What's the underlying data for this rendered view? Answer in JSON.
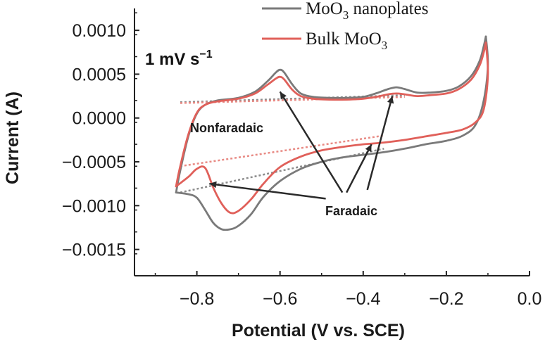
{
  "chart_data": {
    "type": "line",
    "title": "",
    "xlabel": "Potential (V vs. SCE)",
    "ylabel": "Current (A)",
    "xlim": [
      -0.95,
      0.0
    ],
    "ylim": [
      -0.0018,
      0.00125
    ],
    "x_ticks": [
      -0.8,
      -0.6,
      -0.4,
      -0.2,
      0.0
    ],
    "x_tick_labels": [
      "−0.8",
      "−0.6",
      "−0.4",
      "−0.2",
      "0.0"
    ],
    "y_ticks": [
      0.001,
      0.0005,
      0.0,
      -0.0005,
      -0.001,
      -0.0015
    ],
    "y_tick_labels": [
      "0.0010",
      "0.0005",
      "0.0000",
      "−0.0005",
      "−0.0010",
      "−0.0015"
    ],
    "grid": false,
    "legend_position": "top",
    "scan_rate": {
      "prefix": "1 mV s",
      "exponent": "−1"
    },
    "series": [
      {
        "name": "MoO3 nanoplates",
        "name_main": "MoO",
        "name_sub": "3",
        "name_rest": " nanoplates",
        "color": "#7a7a7a",
        "anodic": {
          "x": [
            -0.85,
            -0.84,
            -0.82,
            -0.8,
            -0.78,
            -0.75,
            -0.7,
            -0.66,
            -0.63,
            -0.61,
            -0.6,
            -0.59,
            -0.57,
            -0.55,
            -0.52,
            -0.48,
            -0.44,
            -0.4,
            -0.37,
            -0.34,
            -0.32,
            -0.3,
            -0.27,
            -0.24,
            -0.2,
            -0.17,
            -0.14,
            -0.12,
            -0.11,
            -0.105
          ],
          "y": [
            -0.00085,
            -0.0006,
            -0.0002,
            5e-05,
            0.00015,
            0.0002,
            0.00023,
            0.0003,
            0.00042,
            0.00052,
            0.00055,
            0.00052,
            0.00038,
            0.00028,
            0.00024,
            0.00023,
            0.00023,
            0.00024,
            0.00028,
            0.00033,
            0.00035,
            0.00033,
            0.00029,
            0.00029,
            0.00031,
            0.00036,
            0.00048,
            0.00065,
            0.00082,
            0.00093
          ]
        },
        "cathodic": {
          "x": [
            -0.105,
            -0.1,
            -0.11,
            -0.13,
            -0.16,
            -0.2,
            -0.25,
            -0.3,
            -0.35,
            -0.4,
            -0.45,
            -0.5,
            -0.55,
            -0.6,
            -0.64,
            -0.67,
            -0.7,
            -0.72,
            -0.74,
            -0.76,
            -0.78,
            -0.8,
            -0.82,
            -0.85
          ],
          "y": [
            0.00093,
            0.0006,
            0.0002,
            -8e-05,
            -0.0002,
            -0.00026,
            -0.0003,
            -0.00035,
            -0.00039,
            -0.00042,
            -0.00045,
            -0.0005,
            -0.00058,
            -0.00072,
            -0.0009,
            -0.0011,
            -0.00123,
            -0.00127,
            -0.00127,
            -0.0012,
            -0.00105,
            -0.00091,
            -0.00087,
            -0.00085
          ]
        }
      },
      {
        "name": "Bulk MoO3",
        "name_main": "Bulk MoO",
        "name_sub": "3",
        "name_rest": "",
        "color": "#e0605a",
        "anodic": {
          "x": [
            -0.85,
            -0.84,
            -0.82,
            -0.8,
            -0.78,
            -0.75,
            -0.7,
            -0.66,
            -0.63,
            -0.61,
            -0.6,
            -0.59,
            -0.57,
            -0.55,
            -0.52,
            -0.48,
            -0.44,
            -0.4,
            -0.37,
            -0.34,
            -0.32,
            -0.3,
            -0.27,
            -0.24,
            -0.2,
            -0.17,
            -0.14,
            -0.12,
            -0.11,
            -0.105
          ],
          "y": [
            -0.00078,
            -0.00055,
            -0.00018,
            6e-05,
            0.00015,
            0.00019,
            0.00022,
            0.00028,
            0.00038,
            0.00045,
            0.00047,
            0.00044,
            0.00032,
            0.00025,
            0.00022,
            0.00021,
            0.00021,
            0.00022,
            0.00024,
            0.00027,
            0.00028,
            0.00027,
            0.00025,
            0.00026,
            0.00028,
            0.00033,
            0.00044,
            0.0006,
            0.00075,
            0.00086
          ]
        },
        "cathodic": {
          "x": [
            -0.105,
            -0.1,
            -0.11,
            -0.13,
            -0.16,
            -0.2,
            -0.25,
            -0.3,
            -0.35,
            -0.4,
            -0.45,
            -0.5,
            -0.55,
            -0.6,
            -0.64,
            -0.67,
            -0.7,
            -0.72,
            -0.74,
            -0.76,
            -0.78,
            -0.8,
            -0.82,
            -0.85
          ],
          "y": [
            0.00086,
            0.0005,
            0.0001,
            -5e-05,
            -0.00013,
            -0.00017,
            -0.00021,
            -0.00025,
            -0.00028,
            -0.0003,
            -0.00033,
            -0.00037,
            -0.00044,
            -0.00056,
            -0.00075,
            -0.00093,
            -0.00106,
            -0.00108,
            -0.00098,
            -0.0008,
            -0.00057,
            -0.00058,
            -0.00067,
            -0.00078
          ]
        }
      }
    ],
    "baselines": [
      {
        "series": "MoO3 nanoplates",
        "x": [
          -0.84,
          -0.3
        ],
        "y": [
          0.00018,
          0.00026
        ],
        "color": "#8c8c8c"
      },
      {
        "series": "Bulk MoO3",
        "x": [
          -0.84,
          -0.3
        ],
        "y": [
          0.00017,
          0.00024
        ],
        "color": "#e88a84"
      },
      {
        "series": "Bulk MoO3",
        "x": [
          -0.84,
          -0.35
        ],
        "y": [
          -0.00055,
          -0.0002
        ],
        "color": "#e88a84"
      },
      {
        "series": "MoO3 nanoplates",
        "x": [
          -0.84,
          -0.35
        ],
        "y": [
          -0.00085,
          -0.00035
        ],
        "color": "#8c8c8c"
      }
    ],
    "annotations": [
      {
        "text": "Nonfaradaic",
        "x": -0.5,
        "y": -0.00017,
        "arrows": [
          {
            "from": [
              -0.45,
              -0.00085
            ],
            "to": [
              -0.6,
              0.0003
            ]
          }
        ]
      },
      {
        "text": "Faradaic",
        "x": -0.4,
        "y": -0.00108,
        "arrows": [
          {
            "from": [
              -0.49,
              -0.00092
            ],
            "to": [
              -0.77,
              -0.00075
            ]
          },
          {
            "from": [
              -0.44,
              -0.00085
            ],
            "to": [
              -0.38,
              -0.0003
            ]
          },
          {
            "from": [
              -0.39,
              -0.00082
            ],
            "to": [
              -0.33,
              0.00025
            ]
          }
        ]
      }
    ]
  }
}
